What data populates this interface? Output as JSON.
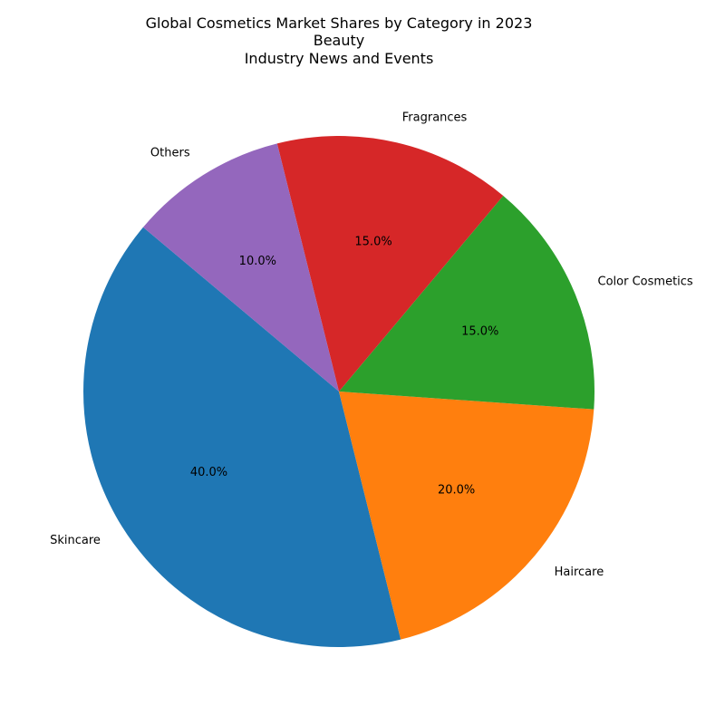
{
  "chart_data": {
    "type": "pie",
    "title": [
      "Global Cosmetics Market Shares by Category in 2023",
      "Beauty",
      "Industry News and Events"
    ],
    "categories": [
      "Skincare",
      "Haircare",
      "Color Cosmetics",
      "Fragrances",
      "Others"
    ],
    "values": [
      40,
      20,
      15,
      15,
      10
    ],
    "value_labels": [
      "40.0%",
      "20.0%",
      "15.0%",
      "15.0%",
      "10.0%"
    ],
    "colors": [
      "#1f77b4",
      "#ff7f0e",
      "#2ca02c",
      "#d62728",
      "#9467bd"
    ],
    "start_angle_deg": 140,
    "direction": "counterclockwise"
  }
}
